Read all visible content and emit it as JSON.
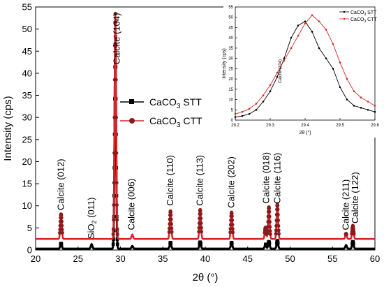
{
  "chart_data": [
    {
      "type": "line",
      "xlabel": "2θ (°)",
      "ylabel": "Intensity (cps)",
      "xlim": [
        20,
        60
      ],
      "ylim": [
        0,
        55
      ],
      "xticks": [
        "20",
        "25",
        "30",
        "35",
        "40",
        "45",
        "50",
        "55",
        "60"
      ],
      "yticks": [
        "0",
        "5",
        "10",
        "15",
        "20",
        "25",
        "30",
        "35",
        "40",
        "45",
        "50",
        "55"
      ],
      "grid": false,
      "legend_placement": "center-right",
      "series": [
        {
          "name": "CaCO3 STT",
          "name_main": "CaCO",
          "name_sub": "3",
          "name_tail": " STT",
          "color": "#000000",
          "marker": "square",
          "baseline": 0.3,
          "peaks": [
            [
              23.0,
              1.2
            ],
            [
              26.6,
              1.0
            ],
            [
              29.4,
              48.0
            ],
            [
              31.4,
              0.6
            ],
            [
              35.9,
              1.4
            ],
            [
              39.4,
              1.5
            ],
            [
              43.1,
              1.4
            ],
            [
              47.1,
              1.0
            ],
            [
              47.5,
              1.6
            ],
            [
              48.5,
              1.8
            ],
            [
              56.6,
              0.8
            ],
            [
              57.4,
              1.6
            ]
          ]
        },
        {
          "name": "CaCO3 CTT",
          "name_main": "CaCO",
          "name_sub": "3",
          "name_tail": " CTT",
          "color": "#d62728",
          "marker": "circle",
          "baseline": 2.5,
          "peaks": [
            [
              23.0,
              5.6
            ],
            [
              29.4,
              51.0
            ],
            [
              31.4,
              1.0
            ],
            [
              35.9,
              6.3
            ],
            [
              39.4,
              6.6
            ],
            [
              43.1,
              6.0
            ],
            [
              47.1,
              2.6
            ],
            [
              47.5,
              7.2
            ],
            [
              48.5,
              7.8
            ],
            [
              56.6,
              1.2
            ],
            [
              57.4,
              3.0
            ]
          ]
        }
      ],
      "annotations": [
        {
          "text": "Calcite (012)",
          "x": 23.0,
          "y": 9
        },
        {
          "text_main": "SiO",
          "text_sub": "2",
          "text_tail": " (011)",
          "x": 26.6,
          "y": 2.5
        },
        {
          "text": "Calcite (104)",
          "x": 29.6,
          "y": 42
        },
        {
          "text": "Calcite (006)",
          "x": 31.3,
          "y": 4.5
        },
        {
          "text": "Calcite (110)",
          "x": 35.9,
          "y": 10
        },
        {
          "text": "Calcite (113)",
          "x": 39.4,
          "y": 10
        },
        {
          "text": "Calcite (202)",
          "x": 43.1,
          "y": 9.5
        },
        {
          "text": "Calcite (018)",
          "x": 47.2,
          "y": 10.5
        },
        {
          "text": "Calcite (116)",
          "x": 48.5,
          "y": 10.5
        },
        {
          "text": "Calcite (211)",
          "x": 56.6,
          "y": 4.5
        },
        {
          "text": "Calcite (122)",
          "x": 57.7,
          "y": 6
        }
      ]
    },
    {
      "type": "line",
      "xlabel": "2θ (°)",
      "ylabel": "Intensity (cps)",
      "xlim": [
        29.2,
        29.6
      ],
      "ylim": [
        0,
        55
      ],
      "xticks": [
        "29.2",
        "29.3",
        "29.4",
        "29.5",
        "29.6"
      ],
      "yticks": [
        "0",
        "5",
        "10",
        "15",
        "20",
        "25",
        "30",
        "35",
        "40",
        "45",
        "50",
        "55"
      ],
      "legend_placement": "top-right",
      "annotation": "Calcite (104)",
      "series": [
        {
          "name": "CaCO3 STT",
          "name_main": "CaCO",
          "name_sub": "3",
          "name_tail": " STT",
          "color": "#000000",
          "x": [
            29.2,
            29.22,
            29.24,
            29.26,
            29.28,
            29.3,
            29.32,
            29.34,
            29.36,
            29.38,
            29.4,
            29.42,
            29.44,
            29.46,
            29.48,
            29.5,
            29.52,
            29.54,
            29.56,
            29.58,
            29.6
          ],
          "y": [
            1.5,
            2,
            3,
            5,
            9,
            14,
            21,
            30,
            40,
            46,
            48,
            43,
            35,
            30,
            25,
            16,
            10,
            7,
            6,
            5,
            4
          ]
        },
        {
          "name": "CaCO3 CTT",
          "name_main": "CaCO",
          "name_sub": "3",
          "name_tail": " CTT",
          "color": "#d62728",
          "x": [
            29.2,
            29.22,
            29.24,
            29.26,
            29.28,
            29.3,
            29.32,
            29.34,
            29.36,
            29.38,
            29.4,
            29.42,
            29.44,
            29.46,
            29.48,
            29.5,
            29.52,
            29.54,
            29.56,
            29.58,
            29.6
          ],
          "y": [
            3,
            4,
            5.5,
            8,
            12,
            17,
            23,
            29,
            35,
            41,
            47,
            51,
            48,
            44,
            37,
            28,
            20,
            14,
            11,
            9,
            7
          ]
        }
      ]
    }
  ]
}
